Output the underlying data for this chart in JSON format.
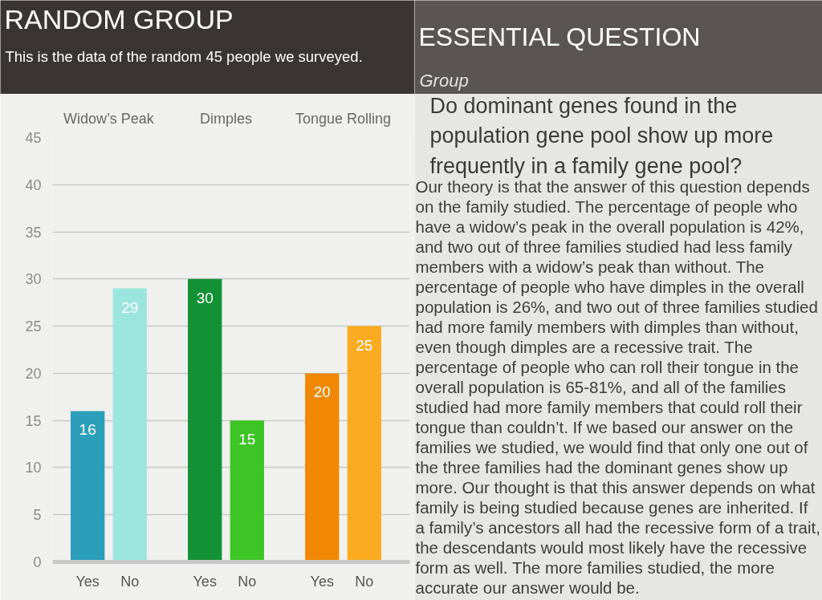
{
  "chart_data": [
    {
      "type": "bar",
      "title": "RANDOM GROUP",
      "subtitle": "This is the data of the random 45 people we surveyed.",
      "categories": [
        "Widow’s Peak",
        "Dimples",
        "Tongue Rolling"
      ],
      "series": [
        {
          "name": "Yes",
          "colors": [
            "#2b9fba",
            "#139136",
            "#f08803"
          ],
          "values": [
            16,
            30,
            20
          ]
        },
        {
          "name": "No",
          "colors": [
            "#9ce5de",
            "#3dc525",
            "#fbab20"
          ],
          "values": [
            29,
            15,
            25
          ]
        }
      ],
      "ylim": [
        0,
        45
      ],
      "yticks": [
        0,
        5,
        10,
        15,
        20,
        25,
        30,
        35,
        40,
        45
      ],
      "grid": "y",
      "data_labels": true
    },
    {
      "type": "other",
      "title": "ESSENTIAL QUESTION",
      "subtitle": "Group",
      "annotations": [
        "Do dominant genes found in the population gene pool show up more frequently in a family gene pool?",
        "Our theory is that the answer of this question depends on the family studied. The percentage of people who have a widow’s peak in the overall population is 42%, and two out of three families studied had less family members with a widow’s peak than without. The percentage of people who have dimples in the overall population is 26%, and two out of three families studied had more family members with dimples than without, even though dimples are a recessive trait. The percentage of people who can roll their tongue in the overall population is 65-81%, and all of the families studied had more family members that could roll their tongue than couldn’t. If we based our answer on the families we studied, we would find that only one out of the three families had the dominant genes show up more. Our thought is that this answer depends on what family is being studied because genes are inherited. If a family’s ancestors all had the recessive form of a trait, the descendants would most likely have the recessive form as well. The more families studied, the more accurate our answer would be."
      ]
    }
  ]
}
